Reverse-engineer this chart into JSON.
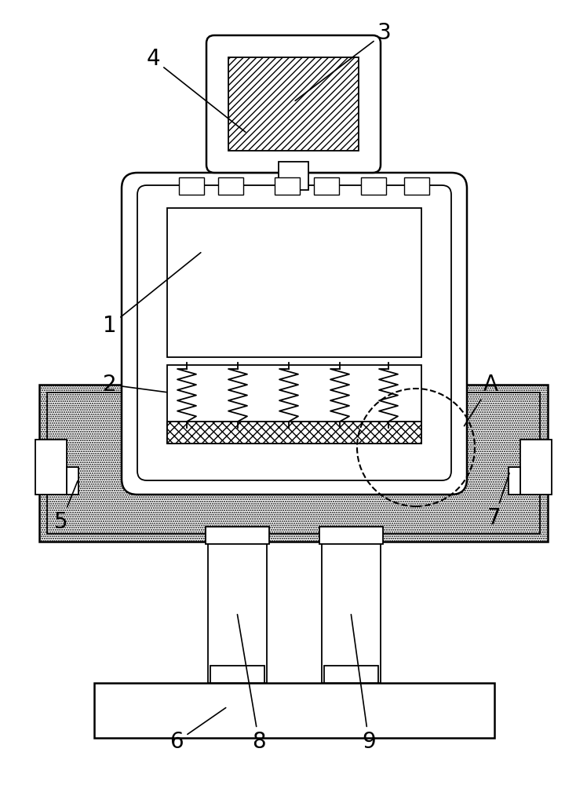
{
  "bg_color": "#ffffff",
  "line_color": "#000000",
  "fig_width": 7.48,
  "fig_height": 10.0,
  "label_fontsize": 20
}
